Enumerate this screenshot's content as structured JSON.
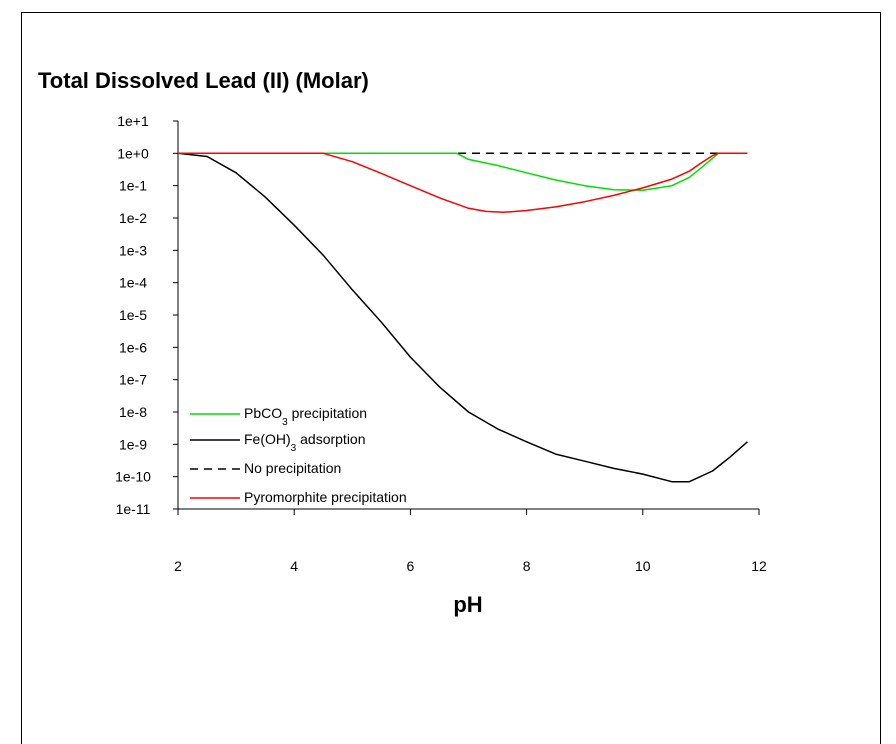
{
  "chart_data": {
    "type": "line",
    "title": "Total Dissolved Lead (II) (Molar)",
    "xlabel": "pH",
    "ylabel": "",
    "xlim": [
      2,
      12
    ],
    "ylim_log10": [
      -11,
      1
    ],
    "y_scale": "log",
    "x_ticks": [
      "2",
      "4",
      "6",
      "8",
      "10",
      "12"
    ],
    "y_ticks": [
      "1e+1",
      "1e+0",
      "1e-1",
      "1e-2",
      "1e-3",
      "1e-4",
      "1e-5",
      "1e-6",
      "1e-7",
      "1e-8",
      "1e-9",
      "1e-10",
      "1e-11"
    ],
    "legend_placement": "bottom-left",
    "series": [
      {
        "key": "pbco3",
        "name": "PbCO",
        "name_sub": "3",
        "name_rest": " precipitation",
        "color": "#00e000",
        "dash": "",
        "x": [
          2,
          4,
          4.6,
          6,
          6.8,
          7.0,
          7.5,
          8,
          8.5,
          9,
          9.5,
          10,
          10.5,
          10.8,
          11.0,
          11.2,
          11.3,
          11.8
        ],
        "y": [
          1,
          1,
          1,
          1,
          1,
          0.65,
          0.42,
          0.25,
          0.15,
          0.1,
          0.075,
          0.072,
          0.1,
          0.18,
          0.35,
          0.7,
          1,
          1
        ]
      },
      {
        "key": "feoh3",
        "name": "Fe(OH)",
        "name_sub": "3",
        "name_rest": " adsorption",
        "color": "#000000",
        "dash": "",
        "x": [
          2,
          2.5,
          3,
          3.5,
          4,
          4.5,
          5,
          5.5,
          6,
          6.5,
          7,
          7.5,
          8,
          8.5,
          9,
          9.5,
          10,
          10.5,
          10.8,
          11.2,
          11.5,
          11.8
        ],
        "y": [
          1,
          0.8,
          0.25,
          0.045,
          0.006,
          0.0007,
          6e-05,
          6e-06,
          5e-07,
          6e-08,
          1e-08,
          3e-09,
          1.2e-09,
          5e-10,
          3e-10,
          1.8e-10,
          1.2e-10,
          7e-11,
          7e-11,
          1.5e-10,
          4e-10,
          1.2e-09
        ]
      },
      {
        "key": "noprecip",
        "name": "No precipitation",
        "name_sub": "",
        "name_rest": "",
        "color": "#000000",
        "dash": "8,6",
        "x": [
          2,
          11.8
        ],
        "y": [
          1,
          1
        ]
      },
      {
        "key": "pyromorphite",
        "name": "Pyromorphite precipitation",
        "name_sub": "",
        "name_rest": "",
        "color": "#ff0000",
        "dash": "",
        "x": [
          2,
          4.5,
          5,
          5.5,
          6,
          6.5,
          7,
          7.3,
          7.6,
          8,
          8.5,
          9,
          9.5,
          10,
          10.5,
          10.8,
          11.0,
          11.2,
          11.3,
          11.8
        ],
        "y": [
          1,
          1,
          0.55,
          0.24,
          0.1,
          0.042,
          0.02,
          0.016,
          0.015,
          0.017,
          0.022,
          0.032,
          0.05,
          0.085,
          0.16,
          0.28,
          0.5,
          0.85,
          1,
          1
        ]
      }
    ]
  }
}
